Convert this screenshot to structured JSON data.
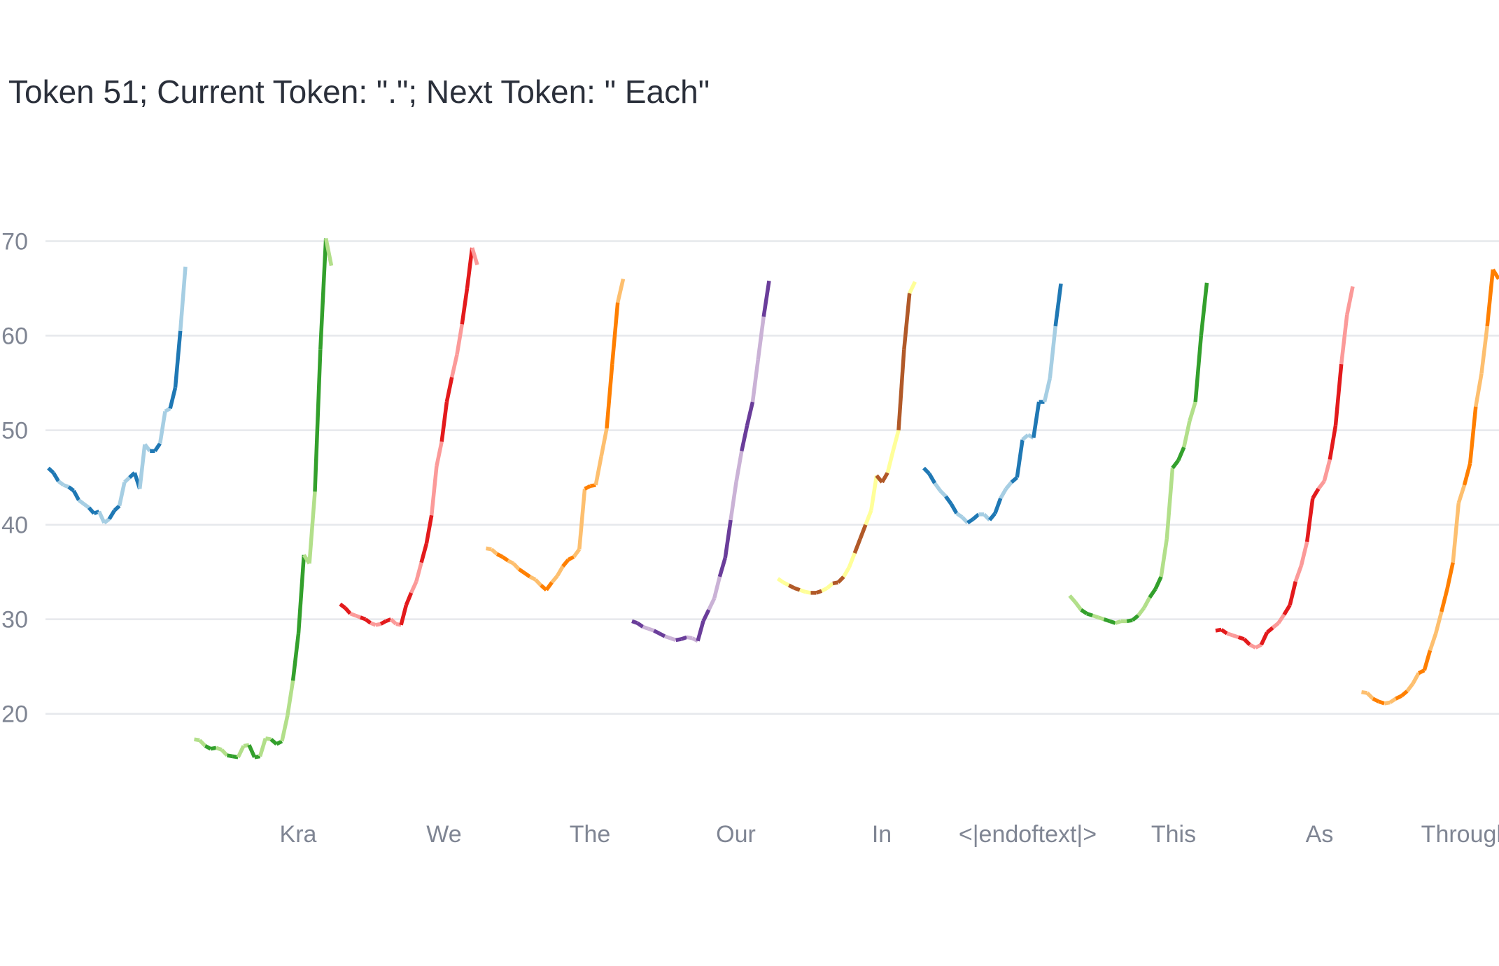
{
  "chart_data": {
    "type": "line",
    "title": "Token 51; Current Token: \".\"; Next Token: \" Each\"",
    "xlabel": "",
    "ylabel": "",
    "ylim": [
      10.5,
      71
    ],
    "yticks": [
      20,
      30,
      40,
      50,
      60,
      70
    ],
    "grid": true,
    "legend": "none",
    "xticks": [
      {
        "index": 2,
        "label": "Kra"
      },
      {
        "index": 3,
        "label": "We"
      },
      {
        "index": 4,
        "label": "The"
      },
      {
        "index": 5,
        "label": "Our"
      },
      {
        "index": 6,
        "label": "In"
      },
      {
        "index": 7,
        "label": "<|endoftext|>"
      },
      {
        "index": 8,
        "label": "This"
      },
      {
        "index": 9,
        "label": "As"
      },
      {
        "index": 10,
        "label": "Through"
      }
    ],
    "series": [
      {
        "colors": [
          "#1f78b4",
          "#a6cee3"
        ],
        "values": [
          46,
          45.5,
          44.6,
          44.2,
          44,
          43.6,
          42.6,
          42.2,
          41.8,
          41.2,
          41.4,
          40.2,
          40.6,
          41.5,
          42,
          44.5,
          45,
          45.5,
          43.8,
          48.5,
          47.8,
          47.8,
          48.6,
          52,
          52.3,
          54.5,
          60.5,
          67.3
        ]
      },
      {
        "colors": [
          "#33a02c",
          "#b2df8a"
        ],
        "values": [
          17.3,
          17.2,
          16.6,
          16.3,
          16.4,
          16.2,
          15.6,
          15.5,
          15.4,
          16.6,
          16.7,
          15.4,
          15.5,
          17.4,
          17.3,
          16.8,
          17.1,
          19.8,
          23.5,
          28.5,
          36.8,
          35.9,
          43.5,
          58.5,
          70.3,
          67.4
        ]
      },
      {
        "colors": [
          "#e31a1c",
          "#fb9a99"
        ],
        "values": [
          31.6,
          31.2,
          30.6,
          30.4,
          30.2,
          30,
          29.6,
          29.4,
          29.5,
          29.8,
          30,
          29.5,
          29.4,
          31.5,
          32.8,
          34,
          36,
          38,
          41,
          46.2,
          48.8,
          53,
          55.6,
          58,
          61.2,
          65,
          69.3,
          67.5
        ]
      },
      {
        "colors": [
          "#ff7f00",
          "#fdbf6f"
        ],
        "values": [
          37.5,
          37.4,
          36.9,
          36.6,
          36.2,
          35.9,
          35.3,
          34.9,
          34.5,
          34.2,
          33.6,
          33.1,
          33.9,
          34.6,
          35.6,
          36.3,
          36.6,
          37.4,
          43.8,
          44.1,
          44.2,
          47.2,
          50.2,
          57,
          63.5,
          66
        ]
      },
      {
        "colors": [
          "#6a3d9a",
          "#cab2d6"
        ],
        "values": [
          29.8,
          29.6,
          29.2,
          29,
          28.8,
          28.5,
          28.2,
          28,
          27.8,
          27.9,
          28.1,
          28,
          27.7,
          29.8,
          31,
          32.2,
          34.5,
          36.5,
          40.5,
          44.5,
          47.8,
          50.5,
          53,
          57.5,
          62,
          65.8
        ]
      },
      {
        "colors": [
          "#b15928",
          "#ffff99"
        ],
        "values": [
          34.3,
          33.9,
          33.6,
          33.3,
          33.1,
          32.9,
          32.8,
          32.8,
          33,
          33.3,
          33.8,
          33.9,
          34.5,
          35.5,
          37,
          38.5,
          40,
          41.5,
          45.2,
          44.5,
          45.5,
          47.8,
          50,
          58.5,
          64.5,
          65.7
        ]
      },
      {
        "colors": [
          "#1f78b4",
          "#a6cee3"
        ],
        "values": [
          46,
          45.4,
          44.4,
          43.6,
          43,
          42.2,
          41.2,
          40.8,
          40.2,
          40.6,
          41.1,
          41.1,
          40.5,
          41.2,
          42.8,
          43.8,
          44.5,
          45,
          49,
          49.5,
          49.2,
          53,
          53,
          55.5,
          61,
          65.5
        ]
      },
      {
        "colors": [
          "#33a02c",
          "#b2df8a"
        ],
        "values": [
          32.5,
          31.8,
          31,
          30.6,
          30.4,
          30.2,
          30,
          29.8,
          29.6,
          29.8,
          29.8,
          29.9,
          30.4,
          31.2,
          32.3,
          33.2,
          34.5,
          38.5,
          46,
          46.8,
          48.2,
          51,
          53,
          60,
          65.6
        ]
      },
      {
        "colors": [
          "#e31a1c",
          "#fb9a99"
        ],
        "values": [
          28.8,
          28.9,
          28.5,
          28.3,
          28.1,
          27.9,
          27.3,
          27,
          27.3,
          28.6,
          29.1,
          29.6,
          30.5,
          31.5,
          34,
          35.7,
          38.2,
          42.8,
          43.8,
          44.6,
          46.9,
          50.5,
          57,
          62.2,
          65.2
        ]
      },
      {
        "colors": [
          "#ff7f00",
          "#fdbf6f"
        ],
        "values": [
          22.3,
          22.2,
          21.6,
          21.3,
          21.1,
          21.2,
          21.6,
          21.9,
          22.4,
          23.2,
          24.3,
          24.6,
          26.7,
          28.5,
          30.8,
          33.2,
          36,
          42.3,
          44.2,
          46.5,
          52.5,
          56,
          61,
          67,
          66
        ]
      }
    ]
  }
}
